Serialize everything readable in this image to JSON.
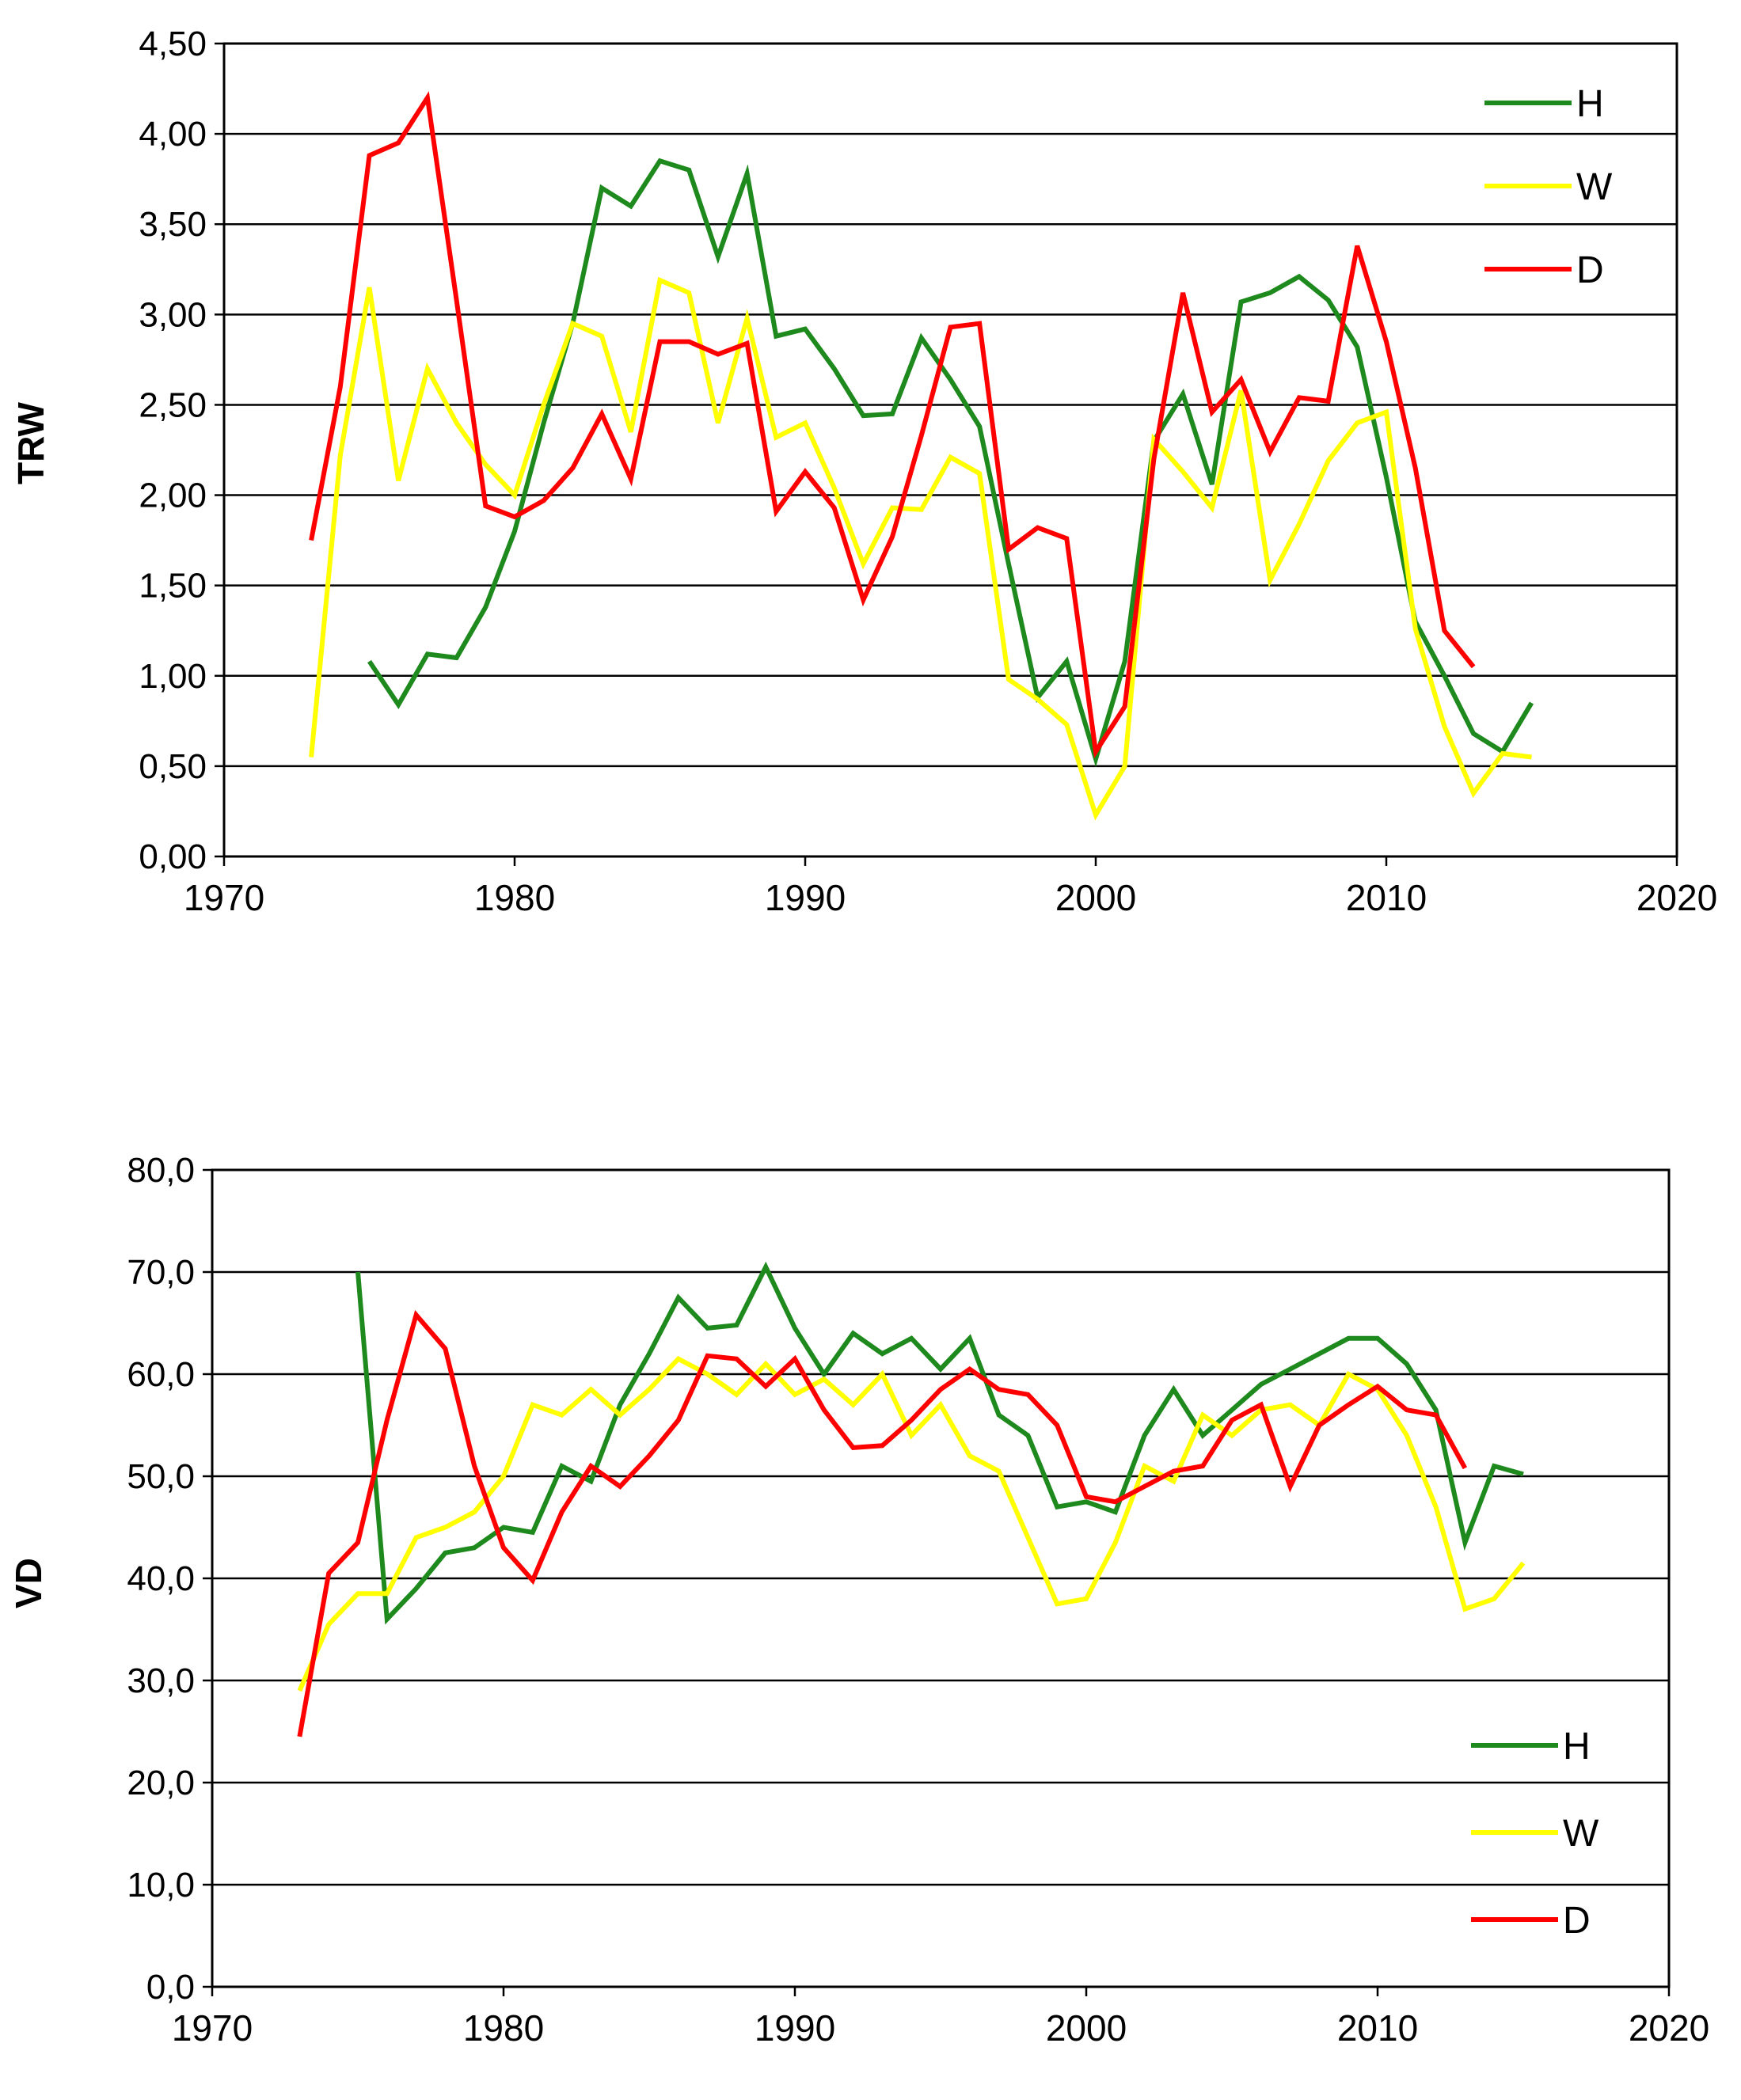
{
  "chart_data": [
    {
      "type": "line",
      "title": "",
      "xlabel": "",
      "ylabel": "TRW",
      "xlim": [
        1970,
        2020
      ],
      "ylim": [
        0,
        4.5
      ],
      "x_ticks": [
        "1970",
        "1980",
        "1990",
        "2000",
        "2010",
        "2020"
      ],
      "y_ticks": [
        "0,00",
        "0,50",
        "1,00",
        "1,50",
        "2,00",
        "2,50",
        "3,00",
        "3,50",
        "4,00",
        "4,50"
      ],
      "legend_position": "top-right",
      "series": [
        {
          "name": "H",
          "color": "#1e8a1e",
          "x": [
            1975,
            1976,
            1977,
            1978,
            1979,
            1980,
            1981,
            1982,
            1983,
            1984,
            1985,
            1986,
            1987,
            1988,
            1989,
            1990,
            1991,
            1992,
            1993,
            1994,
            1995,
            1996,
            1997,
            1998,
            1999,
            2000,
            2001,
            2002,
            2003,
            2004,
            2005,
            2006,
            2007,
            2008,
            2009,
            2010,
            2011,
            2012,
            2013,
            2014,
            2015
          ],
          "values": [
            1.08,
            0.84,
            1.12,
            1.1,
            1.38,
            1.8,
            2.4,
            2.95,
            3.7,
            3.6,
            3.85,
            3.8,
            3.32,
            3.78,
            2.88,
            2.92,
            2.7,
            2.44,
            2.45,
            2.87,
            2.64,
            2.38,
            1.62,
            0.88,
            1.08,
            0.54,
            1.08,
            2.3,
            2.56,
            2.06,
            3.07,
            3.12,
            3.21,
            3.08,
            2.82,
            2.1,
            1.3,
            1.0,
            0.68,
            0.58,
            0.85
          ]
        },
        {
          "name": "W",
          "color": "#ffff00",
          "x": [
            1973,
            1974,
            1975,
            1976,
            1977,
            1978,
            1979,
            1980,
            1981,
            1982,
            1983,
            1984,
            1985,
            1986,
            1987,
            1988,
            1989,
            1990,
            1991,
            1992,
            1993,
            1994,
            1995,
            1996,
            1997,
            1998,
            1999,
            2000,
            2001,
            2002,
            2003,
            2004,
            2005,
            2006,
            2007,
            2008,
            2009,
            2010,
            2011,
            2012,
            2013,
            2014,
            2015
          ],
          "values": [
            0.55,
            2.22,
            3.15,
            2.08,
            2.7,
            2.4,
            2.17,
            2.0,
            2.5,
            2.95,
            2.88,
            2.35,
            3.19,
            3.12,
            2.4,
            2.98,
            2.32,
            2.4,
            2.04,
            1.62,
            1.93,
            1.92,
            2.21,
            2.12,
            0.98,
            0.87,
            0.73,
            0.23,
            0.5,
            2.31,
            2.13,
            1.93,
            2.58,
            1.53,
            1.84,
            2.19,
            2.4,
            2.46,
            1.26,
            0.72,
            0.35,
            0.57,
            0.55
          ]
        },
        {
          "name": "D",
          "color": "#ff0000",
          "x": [
            1973,
            1974,
            1975,
            1976,
            1977,
            1978,
            1979,
            1980,
            1981,
            1982,
            1983,
            1984,
            1985,
            1986,
            1987,
            1988,
            1989,
            1990,
            1991,
            1992,
            1993,
            1994,
            1995,
            1996,
            1997,
            1998,
            1999,
            2000,
            2001,
            2002,
            2003,
            2004,
            2005,
            2006,
            2007,
            2008,
            2009,
            2010,
            2011,
            2012,
            2013
          ],
          "values": [
            1.75,
            2.6,
            3.88,
            3.95,
            4.2,
            3.08,
            1.94,
            1.88,
            1.97,
            2.15,
            2.45,
            2.09,
            2.85,
            2.85,
            2.78,
            2.84,
            1.91,
            2.13,
            1.93,
            1.42,
            1.77,
            2.33,
            2.93,
            2.95,
            1.7,
            1.82,
            1.76,
            0.58,
            0.83,
            2.2,
            3.12,
            2.46,
            2.64,
            2.24,
            2.54,
            2.52,
            3.38,
            2.85,
            2.15,
            1.25,
            1.05
          ]
        }
      ]
    },
    {
      "type": "line",
      "title": "",
      "xlabel": "",
      "ylabel": "VD",
      "xlim": [
        1970,
        2020
      ],
      "ylim": [
        0,
        80
      ],
      "x_ticks": [
        "1970",
        "1980",
        "1990",
        "2000",
        "2010",
        "2020"
      ],
      "y_ticks": [
        "0,0",
        "10,0",
        "20,0",
        "30,0",
        "40,0",
        "50,0",
        "60,0",
        "70,0",
        "80,0"
      ],
      "legend_position": "bottom-right",
      "series": [
        {
          "name": "H",
          "color": "#1e8a1e",
          "x": [
            1975,
            1976,
            1977,
            1978,
            1979,
            1980,
            1981,
            1982,
            1983,
            1984,
            1985,
            1986,
            1987,
            1988,
            1989,
            1990,
            1991,
            1992,
            1993,
            1994,
            1995,
            1996,
            1997,
            1998,
            1999,
            2000,
            2001,
            2002,
            2003,
            2004,
            2005,
            2006,
            2007,
            2008,
            2009,
            2010,
            2011,
            2012,
            2013,
            2014,
            2015
          ],
          "values": [
            70.0,
            36.0,
            39.0,
            42.5,
            43.0,
            45.0,
            44.5,
            51.0,
            49.5,
            57.0,
            62.0,
            67.5,
            64.5,
            64.8,
            70.5,
            64.5,
            60.0,
            64.0,
            62.0,
            63.5,
            60.5,
            63.5,
            56.0,
            54.0,
            47.0,
            47.5,
            46.5,
            54.0,
            58.5,
            54.0,
            56.5,
            59.0,
            60.5,
            62.0,
            63.5,
            63.5,
            61.0,
            56.5,
            43.5,
            51.0,
            50.2
          ]
        },
        {
          "name": "W",
          "color": "#ffff00",
          "x": [
            1973,
            1974,
            1975,
            1976,
            1977,
            1978,
            1979,
            1980,
            1981,
            1982,
            1983,
            1984,
            1985,
            1986,
            1987,
            1988,
            1989,
            1990,
            1991,
            1992,
            1993,
            1994,
            1995,
            1996,
            1997,
            1998,
            1999,
            2000,
            2001,
            2002,
            2003,
            2004,
            2005,
            2006,
            2007,
            2008,
            2009,
            2010,
            2011,
            2012,
            2013,
            2014,
            2015
          ],
          "values": [
            29.0,
            35.5,
            38.5,
            38.5,
            44.0,
            45.0,
            46.5,
            50.0,
            57.0,
            56.0,
            58.5,
            56.0,
            58.5,
            61.5,
            60.0,
            58.0,
            61.0,
            58.0,
            59.5,
            57.0,
            60.0,
            54.0,
            57.0,
            52.0,
            50.5,
            44.0,
            37.5,
            38.0,
            43.5,
            51.0,
            49.5,
            56.0,
            54.0,
            56.5,
            57.0,
            55.0,
            60.0,
            58.5,
            54.0,
            47.0,
            37.0,
            38.0,
            41.5
          ]
        },
        {
          "name": "D",
          "color": "#ff0000",
          "x": [
            1973,
            1974,
            1975,
            1976,
            1977,
            1978,
            1979,
            1980,
            1981,
            1982,
            1983,
            1984,
            1985,
            1986,
            1987,
            1988,
            1989,
            1990,
            1991,
            1992,
            1993,
            1994,
            1995,
            1996,
            1997,
            1998,
            1999,
            2000,
            2001,
            2002,
            2003,
            2004,
            2005,
            2006,
            2007,
            2008,
            2009,
            2010,
            2011,
            2012,
            2013
          ],
          "values": [
            24.5,
            40.5,
            43.5,
            55.5,
            65.8,
            62.5,
            51.0,
            43.0,
            39.8,
            46.5,
            51.0,
            49.0,
            52.0,
            55.5,
            61.8,
            61.5,
            58.8,
            61.5,
            56.5,
            52.8,
            53.0,
            55.5,
            58.5,
            60.5,
            58.5,
            58.0,
            55.0,
            48.0,
            47.5,
            49.0,
            50.5,
            51.0,
            55.5,
            57.0,
            49.0,
            55.0,
            57.0,
            58.8,
            56.5,
            56.0,
            50.8
          ]
        }
      ]
    }
  ]
}
